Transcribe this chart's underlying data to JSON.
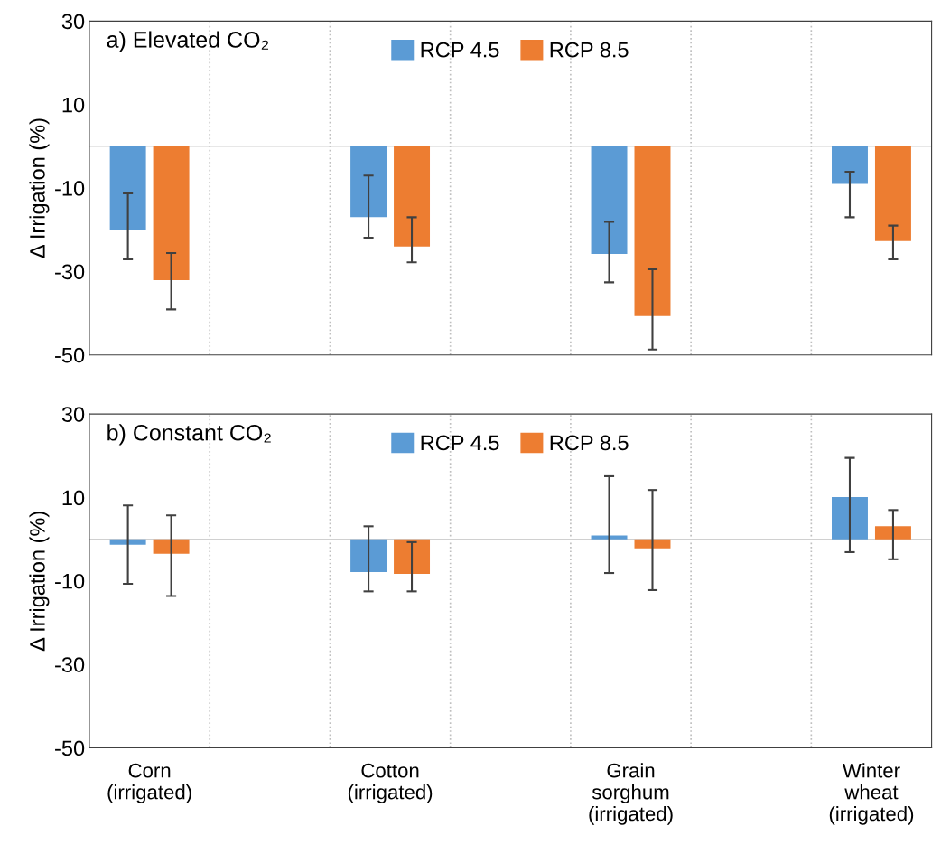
{
  "chart_data": [
    {
      "type": "bar",
      "title": "a) Elevated CO₂",
      "ylabel": "Δ Irrigation (%)",
      "categories": [
        null,
        null,
        null,
        null,
        null,
        null,
        null
      ],
      "series": [
        {
          "name": "RCP 4.5",
          "color": "#5b9bd5",
          "values": [
            -20.1,
            null,
            -17.0,
            null,
            -25.8,
            null,
            -9.0
          ],
          "errors": [
            [
              -27.1,
              -11.3
            ],
            null,
            [
              -21.9,
              -7.0
            ],
            null,
            [
              -32.6,
              -18.1
            ],
            null,
            [
              -17.0,
              -6.1
            ]
          ]
        },
        {
          "name": "RCP 8.5",
          "color": "#ed7d31",
          "values": [
            -32.1,
            null,
            -24.0,
            null,
            -40.7,
            null,
            -22.7
          ],
          "errors": [
            [
              -39.1,
              -25.6
            ],
            null,
            [
              -27.8,
              -17.0
            ],
            null,
            [
              -48.7,
              -29.5
            ],
            null,
            [
              -27.1,
              -19.0
            ]
          ]
        }
      ],
      "ylim": [
        -50,
        30
      ],
      "yticks": [
        -50,
        -30,
        -10,
        10,
        30
      ],
      "grid": "x",
      "legend": "top",
      "tick_labels": "y"
    },
    {
      "type": "bar",
      "title": "b) Constant CO₂",
      "ylabel": "Δ Irrigation (%)",
      "categories": [
        "Corn\n(irrigated)",
        null,
        "Cotton\n(irrigated)",
        null,
        "Grain\nsorghum\n(irrigated)",
        null,
        "Winter\nwheat\n(irrigated)"
      ],
      "series": [
        {
          "name": "RCP 4.5",
          "color": "#5b9bd5",
          "values": [
            -1.3,
            null,
            -7.9,
            null,
            0.9,
            null,
            10.1
          ],
          "errors": [
            [
              -10.7,
              8.1
            ],
            null,
            [
              -12.5,
              3.1
            ],
            null,
            [
              -8.1,
              15.1
            ],
            null,
            [
              -3.1,
              19.5
            ]
          ]
        },
        {
          "name": "RCP 8.5",
          "color": "#ed7d31",
          "values": [
            -3.5,
            null,
            -8.3,
            null,
            -2.2,
            null,
            3.1
          ],
          "errors": [
            [
              -13.6,
              5.7
            ],
            null,
            [
              -12.5,
              -0.7
            ],
            null,
            [
              -12.2,
              11.8
            ],
            null,
            [
              -4.8,
              7.0
            ]
          ]
        }
      ],
      "ylim": [
        -50,
        30
      ],
      "yticks": [
        -50,
        -30,
        -10,
        10,
        30
      ],
      "grid": "x",
      "legend": "top"
    }
  ]
}
